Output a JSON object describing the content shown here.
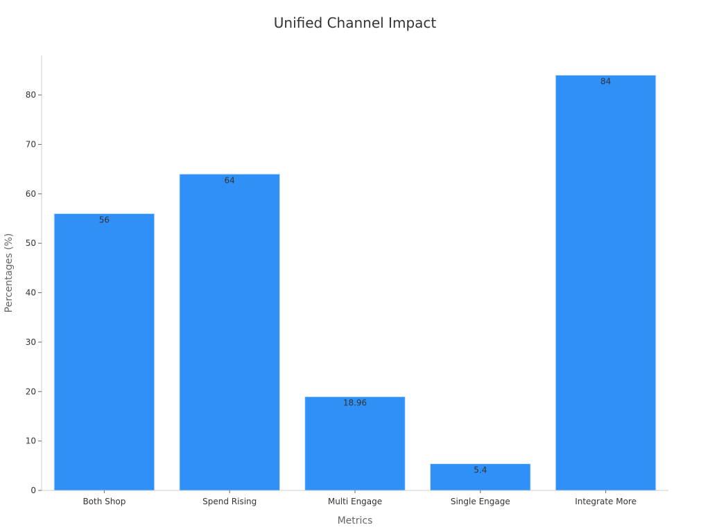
{
  "chart_data": {
    "type": "bar",
    "title": "Unified Channel Impact",
    "xlabel": "Metrics",
    "ylabel": "Percentages (%)",
    "categories": [
      "Both Shop",
      "Spend Rising",
      "Multi Engage",
      "Single Engage",
      "Integrate More"
    ],
    "values": [
      56,
      64,
      18.96,
      5.4,
      84
    ],
    "data_labels": [
      "56",
      "64",
      "18.96",
      "5.4",
      "84"
    ],
    "ylim": [
      0,
      88
    ],
    "yticks": [
      0,
      10,
      20,
      30,
      40,
      50,
      60,
      70,
      80
    ],
    "bar_color": "#2f91f7",
    "grid": false,
    "legend": "none"
  }
}
